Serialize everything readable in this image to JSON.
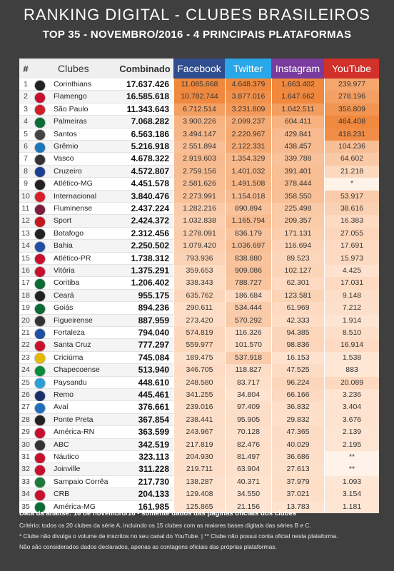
{
  "title": "RANKING DIGITAL - CLUBES BRASILEIROS",
  "subtitle": "TOP 35 - NOVEMBRO/2016 - 4 PRINCIPAIS PLATAFORMAS",
  "headers": {
    "rank": "#",
    "club": "Clubes",
    "combined": "Combinado",
    "facebook": "Facebook",
    "twitter": "Twitter",
    "instagram": "Instagram",
    "youtube": "YouTube"
  },
  "colors": {
    "facebook": "#2f4d8f",
    "twitter": "#29a7e8",
    "instagram": "#7a3b9e",
    "youtube": "#d2302a",
    "heat_low": "#ffeadb",
    "heat_high": "#f0883d"
  },
  "chart_data": {
    "type": "table",
    "title": "RANKING DIGITAL - CLUBES BRASILEIROS",
    "columns": [
      "#",
      "Clubes",
      "Combinado",
      "Facebook",
      "Twitter",
      "Instagram",
      "YouTube"
    ],
    "rows": [
      {
        "rank": "1",
        "club": "Corinthians",
        "combined": "17.637.426",
        "facebook": "11.085.668",
        "twitter": "4.648.379",
        "instagram": "1.663.402",
        "youtube": "239.977",
        "fb": 11085668,
        "tw": 4648379,
        "ig": 1663402,
        "yt": 239977,
        "logo": "#222222"
      },
      {
        "rank": "2",
        "club": "Flamengo",
        "combined": "16.585.618",
        "facebook": "10.782.744",
        "twitter": "3.877.016",
        "instagram": "1.647.662",
        "youtube": "278.196",
        "fb": 10782744,
        "tw": 3877016,
        "ig": 1647662,
        "yt": 278196,
        "logo": "#c8102e"
      },
      {
        "rank": "3",
        "club": "São Paulo",
        "combined": "11.343.643",
        "facebook": "6.712.514",
        "twitter": "3.231.809",
        "instagram": "1.042.511",
        "youtube": "356.809",
        "fb": 6712514,
        "tw": 3231809,
        "ig": 1042511,
        "yt": 356809,
        "logo": "#d01f26"
      },
      {
        "rank": "4",
        "club": "Palmeiras",
        "combined": "7.068.282",
        "facebook": "3.900.226",
        "twitter": "2.099.237",
        "instagram": "604.411",
        "youtube": "464.408",
        "fb": 3900226,
        "tw": 2099237,
        "ig": 604411,
        "yt": 464408,
        "logo": "#0a6b35"
      },
      {
        "rank": "5",
        "club": "Santos",
        "combined": "6.563.186",
        "facebook": "3.494.147",
        "twitter": "2.220.967",
        "instagram": "429.841",
        "youtube": "418.231",
        "fb": 3494147,
        "tw": 2220967,
        "ig": 429841,
        "yt": 418231,
        "logo": "#444444"
      },
      {
        "rank": "6",
        "club": "Grêmio",
        "combined": "5.216.918",
        "facebook": "2.551.894",
        "twitter": "2.122.331",
        "instagram": "438.457",
        "youtube": "104.236",
        "fb": 2551894,
        "tw": 2122331,
        "ig": 438457,
        "yt": 104236,
        "logo": "#1b75bb"
      },
      {
        "rank": "7",
        "club": "Vasco",
        "combined": "4.678.322",
        "facebook": "2.919.603",
        "twitter": "1.354.329",
        "instagram": "339.788",
        "youtube": "64.602",
        "fb": 2919603,
        "tw": 1354329,
        "ig": 339788,
        "yt": 64602,
        "logo": "#333333"
      },
      {
        "rank": "8",
        "club": "Cruzeiro",
        "combined": "4.572.807",
        "facebook": "2.759.156",
        "twitter": "1.401.032",
        "instagram": "391.401",
        "youtube": "21.218",
        "fb": 2759156,
        "tw": 1401032,
        "ig": 391401,
        "yt": 21218,
        "logo": "#1c3f94"
      },
      {
        "rank": "9",
        "club": "Atlético-MG",
        "combined": "4.451.578",
        "facebook": "2.581.626",
        "twitter": "1.491.508",
        "instagram": "378.444",
        "youtube": "*",
        "fb": 2581626,
        "tw": 1491508,
        "ig": 378444,
        "yt": null,
        "logo": "#222222"
      },
      {
        "rank": "10",
        "club": "Internacional",
        "combined": "3.840.476",
        "facebook": "2.273.991",
        "twitter": "1.154.018",
        "instagram": "358.550",
        "youtube": "53.917",
        "fb": 2273991,
        "tw": 1154018,
        "ig": 358550,
        "yt": 53917,
        "logo": "#d8202b"
      },
      {
        "rank": "11",
        "club": "Fluminense",
        "combined": "2.437.224",
        "facebook": "1.282.216",
        "twitter": "890.894",
        "instagram": "225.498",
        "youtube": "38.616",
        "fb": 1282216,
        "tw": 890894,
        "ig": 225498,
        "yt": 38616,
        "logo": "#7a1e3a"
      },
      {
        "rank": "12",
        "club": "Sport",
        "combined": "2.424.372",
        "facebook": "1.032.838",
        "twitter": "1.165.794",
        "instagram": "209.357",
        "youtube": "16.383",
        "fb": 1032838,
        "tw": 1165794,
        "ig": 209357,
        "yt": 16383,
        "logo": "#c4161c"
      },
      {
        "rank": "13",
        "club": "Botafogo",
        "combined": "2.312.456",
        "facebook": "1.278.091",
        "twitter": "836.179",
        "instagram": "171.131",
        "youtube": "27.055",
        "fb": 1278091,
        "tw": 836179,
        "ig": 171131,
        "yt": 27055,
        "logo": "#222222"
      },
      {
        "rank": "14",
        "club": "Bahia",
        "combined": "2.250.502",
        "facebook": "1.079.420",
        "twitter": "1.036.697",
        "instagram": "116.694",
        "youtube": "17.691",
        "fb": 1079420,
        "tw": 1036697,
        "ig": 116694,
        "yt": 17691,
        "logo": "#1f4fa0"
      },
      {
        "rank": "15",
        "club": "Atlético-PR",
        "combined": "1.738.312",
        "facebook": "793.936",
        "twitter": "838.880",
        "instagram": "89.523",
        "youtube": "15.973",
        "fb": 793936,
        "tw": 838880,
        "ig": 89523,
        "yt": 15973,
        "logo": "#c8102e"
      },
      {
        "rank": "16",
        "club": "Vitória",
        "combined": "1.375.291",
        "facebook": "359.653",
        "twitter": "909.086",
        "instagram": "102.127",
        "youtube": "4.425",
        "fb": 359653,
        "tw": 909086,
        "ig": 102127,
        "yt": 4425,
        "logo": "#c8102e"
      },
      {
        "rank": "17",
        "club": "Coritiba",
        "combined": "1.206.402",
        "facebook": "338.343",
        "twitter": "788.727",
        "instagram": "62.301",
        "youtube": "17.031",
        "fb": 338343,
        "tw": 788727,
        "ig": 62301,
        "yt": 17031,
        "logo": "#0a6b35"
      },
      {
        "rank": "18",
        "club": "Ceará",
        "combined": "955.175",
        "facebook": "635.762",
        "twitter": "186.684",
        "instagram": "123.581",
        "youtube": "9.148",
        "fb": 635762,
        "tw": 186684,
        "ig": 123581,
        "yt": 9148,
        "logo": "#222222"
      },
      {
        "rank": "19",
        "club": "Goiás",
        "combined": "894.236",
        "facebook": "290.611",
        "twitter": "534.444",
        "instagram": "61.969",
        "youtube": "7.212",
        "fb": 290611,
        "tw": 534444,
        "ig": 61969,
        "yt": 7212,
        "logo": "#0a6b35"
      },
      {
        "rank": "20",
        "club": "Figueirense",
        "combined": "887.959",
        "facebook": "273.420",
        "twitter": "570.292",
        "instagram": "42.333",
        "youtube": "1.914",
        "fb": 273420,
        "tw": 570292,
        "ig": 42333,
        "yt": 1914,
        "logo": "#333333"
      },
      {
        "rank": "21",
        "club": "Fortaleza",
        "combined": "794.040",
        "facebook": "574.819",
        "twitter": "116.326",
        "instagram": "94.385",
        "youtube": "8.510",
        "fb": 574819,
        "tw": 116326,
        "ig": 94385,
        "yt": 8510,
        "logo": "#1f4fa0"
      },
      {
        "rank": "22",
        "club": "Santa Cruz",
        "combined": "777.297",
        "facebook": "559.977",
        "twitter": "101.570",
        "instagram": "98.836",
        "youtube": "16.914",
        "fb": 559977,
        "tw": 101570,
        "ig": 98836,
        "yt": 16914,
        "logo": "#c8102e"
      },
      {
        "rank": "23",
        "club": "Criciúma",
        "combined": "745.084",
        "facebook": "189.475",
        "twitter": "537.918",
        "instagram": "16.153",
        "youtube": "1.538",
        "fb": 189475,
        "tw": 537918,
        "ig": 16153,
        "yt": 1538,
        "logo": "#e5b800"
      },
      {
        "rank": "24",
        "club": "Chapecoense",
        "combined": "513.940",
        "facebook": "346.705",
        "twitter": "118.827",
        "instagram": "47.525",
        "youtube": "883",
        "fb": 346705,
        "tw": 118827,
        "ig": 47525,
        "yt": 883,
        "logo": "#0a8a3c"
      },
      {
        "rank": "25",
        "club": "Paysandu",
        "combined": "448.610",
        "facebook": "248.580",
        "twitter": "83.717",
        "instagram": "96.224",
        "youtube": "20.089",
        "fb": 248580,
        "tw": 83717,
        "ig": 96224,
        "yt": 20089,
        "logo": "#2aa0d8"
      },
      {
        "rank": "26",
        "club": "Remo",
        "combined": "445.461",
        "facebook": "341.255",
        "twitter": "34.804",
        "instagram": "66.166",
        "youtube": "3.236",
        "fb": 341255,
        "tw": 34804,
        "ig": 66166,
        "yt": 3236,
        "logo": "#1c2f6b"
      },
      {
        "rank": "27",
        "club": "Avaí",
        "combined": "376.661",
        "facebook": "239.016",
        "twitter": "97.409",
        "instagram": "36.832",
        "youtube": "3.404",
        "fb": 239016,
        "tw": 97409,
        "ig": 36832,
        "yt": 3404,
        "logo": "#1f6fc0"
      },
      {
        "rank": "28",
        "club": "Ponte Preta",
        "combined": "367.854",
        "facebook": "238.441",
        "twitter": "95.905",
        "instagram": "29.832",
        "youtube": "3.676",
        "fb": 238441,
        "tw": 95905,
        "ig": 29832,
        "yt": 3676,
        "logo": "#222222"
      },
      {
        "rank": "29",
        "club": "América-RN",
        "combined": "363.599",
        "facebook": "243.967",
        "twitter": "70.128",
        "instagram": "47.365",
        "youtube": "2.139",
        "fb": 243967,
        "tw": 70128,
        "ig": 47365,
        "yt": 2139,
        "logo": "#c8102e"
      },
      {
        "rank": "30",
        "club": "ABC",
        "combined": "342.519",
        "facebook": "217.819",
        "twitter": "82.476",
        "instagram": "40.029",
        "youtube": "2.195",
        "fb": 217819,
        "tw": 82476,
        "ig": 40029,
        "yt": 2195,
        "logo": "#333333"
      },
      {
        "rank": "31",
        "club": "Náutico",
        "combined": "323.113",
        "facebook": "204.930",
        "twitter": "81.497",
        "instagram": "36.686",
        "youtube": "**",
        "fb": 204930,
        "tw": 81497,
        "ig": 36686,
        "yt": null,
        "logo": "#c8102e"
      },
      {
        "rank": "32",
        "club": "Joinville",
        "combined": "311.228",
        "facebook": "219.711",
        "twitter": "63.904",
        "instagram": "27.613",
        "youtube": "**",
        "fb": 219711,
        "tw": 63904,
        "ig": 27613,
        "yt": null,
        "logo": "#c8102e"
      },
      {
        "rank": "33",
        "club": "Sampaio Corrêa",
        "combined": "217.730",
        "facebook": "138.287",
        "twitter": "40.371",
        "instagram": "37.979",
        "youtube": "1.093",
        "fb": 138287,
        "tw": 40371,
        "ig": 37979,
        "yt": 1093,
        "logo": "#1a7a3a"
      },
      {
        "rank": "34",
        "club": "CRB",
        "combined": "204.133",
        "facebook": "129.408",
        "twitter": "34.550",
        "instagram": "37.021",
        "youtube": "3.154",
        "fb": 129408,
        "tw": 34550,
        "ig": 37021,
        "yt": 3154,
        "logo": "#c8102e"
      },
      {
        "rank": "35",
        "club": "América-MG",
        "combined": "161.985",
        "facebook": "125.865",
        "twitter": "21.156",
        "instagram": "13.783",
        "youtube": "1.181",
        "fb": 125865,
        "tw": 21156,
        "ig": 13783,
        "yt": 1181,
        "logo": "#0a6b35"
      }
    ]
  },
  "footer": {
    "line1": "Data da análise: 16 de novembro/16 - somente dados das páginas oficiais dos clubes",
    "line2": "Critério: todos os 20 clubes da série A, incluindo os 15 clubes com as maiores bases digitais das séries B e C.",
    "line3": "* Clube não divulga o volume de inscritos no seu canal do YouTube. | ** Clube não possui conta oficial nesta plataforma.",
    "line4": "Não são considerados dados declarados, apenas as contagens oficiais das próprias plataformas."
  }
}
